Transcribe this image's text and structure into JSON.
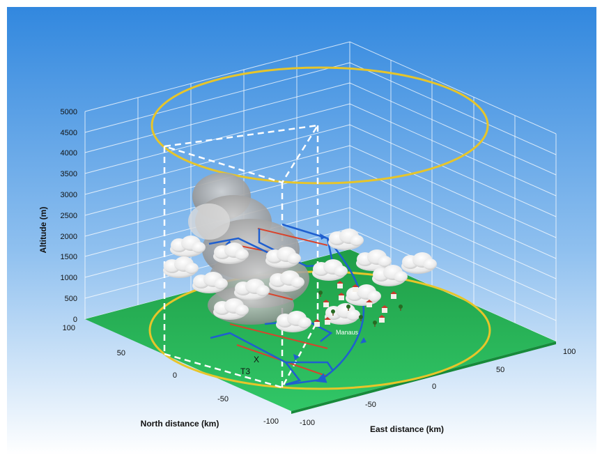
{
  "axes": {
    "altitude_title": "Altitude (m)",
    "north_title": "North distance (km)",
    "east_title": "East distance (km)",
    "altitude_ticks": [
      "0",
      "500",
      "1000",
      "1500",
      "2000",
      "2500",
      "3000",
      "3500",
      "4000",
      "4500",
      "5000"
    ],
    "north_ticks": [
      "100",
      "50",
      "0",
      "-50",
      "-100"
    ],
    "east_ticks": [
      "-100",
      "-50",
      "0",
      "50",
      "100"
    ]
  },
  "labels": {
    "city": "Manaus",
    "marker_x": "X",
    "marker_t3": "T3"
  },
  "colors": {
    "sky_top": "#2f86de",
    "sky_bottom": "#ffffff",
    "ground": "#1e9c46",
    "ground_light": "#2fcb66",
    "ring": "#e7c52a",
    "flight_track": "#1f5fcf",
    "red_leg": "#d8432c",
    "dashed_box": "#ffffff",
    "grid": "#ffffff"
  },
  "icons": [
    "cloud-icon",
    "house-icon",
    "tree-icon",
    "flight-arrow-icon"
  ]
}
